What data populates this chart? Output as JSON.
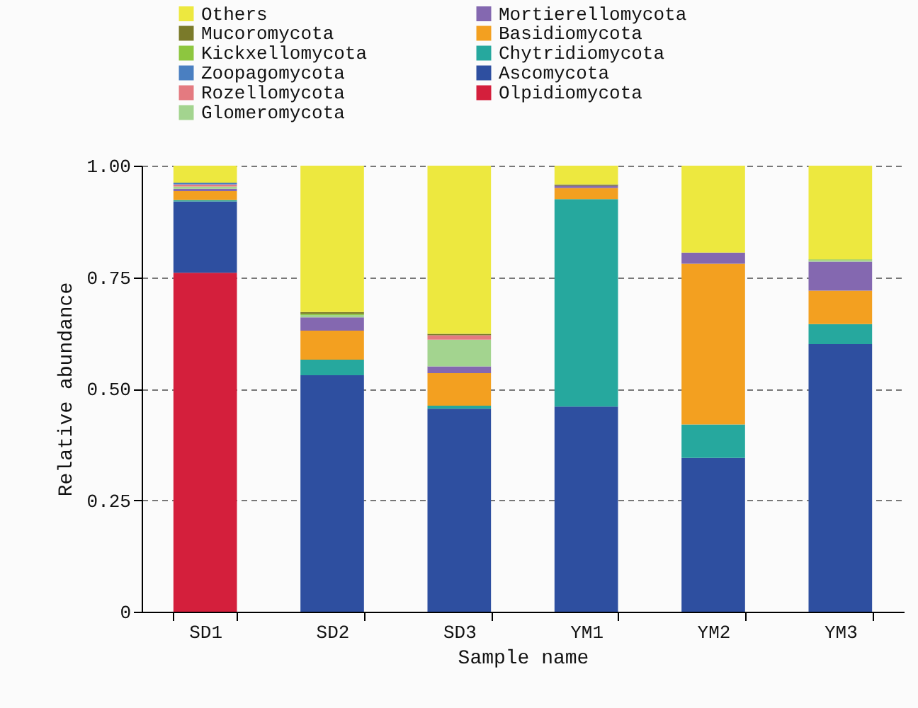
{
  "chart_data": {
    "type": "bar",
    "stacked": true,
    "xlabel": "Sample name",
    "ylabel": "Relative abundance",
    "categories": [
      "SD1",
      "SD2",
      "SD3",
      "YM1",
      "YM2",
      "YM3"
    ],
    "ylim": [
      0,
      1
    ],
    "yticks": [
      0,
      0.25,
      {
        "value": 0.5,
        "label": "0.50"
      },
      0.75,
      {
        "value": 1,
        "label": "1.00"
      }
    ],
    "grid": "y",
    "legend": "top",
    "series": [
      {
        "name": "Olpidiomycota",
        "color": "#d41f3c",
        "values": [
          0.76,
          null,
          null,
          null,
          null,
          null
        ]
      },
      {
        "name": "Ascomycota",
        "color": "#2e4fa0",
        "values": [
          0.16,
          0.53,
          0.455,
          0.46,
          0.345,
          0.6
        ]
      },
      {
        "name": "Chytridiomycota",
        "color": "#26a89e",
        "values": [
          0.003,
          0.035,
          0.007,
          0.465,
          0.075,
          0.045
        ]
      },
      {
        "name": "Basidiomycota",
        "color": "#f3a020",
        "values": [
          0.02,
          0.065,
          0.073,
          0.025,
          0.36,
          0.075
        ]
      },
      {
        "name": "Mortierellomycota",
        "color": "#8468b0",
        "values": [
          0.005,
          0.03,
          0.015,
          0.005,
          0.025,
          0.065
        ]
      },
      {
        "name": "Glomeromycota",
        "color": "#a3d48f",
        "values": [
          0.005,
          0.005,
          0.06,
          null,
          null,
          0.003
        ]
      },
      {
        "name": "Rozellomycota",
        "color": "#e47a80",
        "values": [
          0.005,
          null,
          0.01,
          null,
          null,
          null
        ]
      },
      {
        "name": "Zoopagomycota",
        "color": "#4a7fc1",
        "values": [
          0.004,
          null,
          null,
          null,
          null,
          null
        ]
      },
      {
        "name": "Kickxellomycota",
        "color": "#8dc63f",
        "values": [
          null,
          0.003,
          null,
          null,
          null,
          0.002
        ]
      },
      {
        "name": "Mucoromycota",
        "color": "#7a7a2a",
        "values": [
          null,
          0.004,
          0.003,
          0.003,
          null,
          null
        ]
      },
      {
        "name": "Others",
        "color": "#ede83f",
        "values": [
          0.038,
          0.328,
          0.377,
          0.042,
          0.195,
          0.21
        ]
      }
    ]
  }
}
